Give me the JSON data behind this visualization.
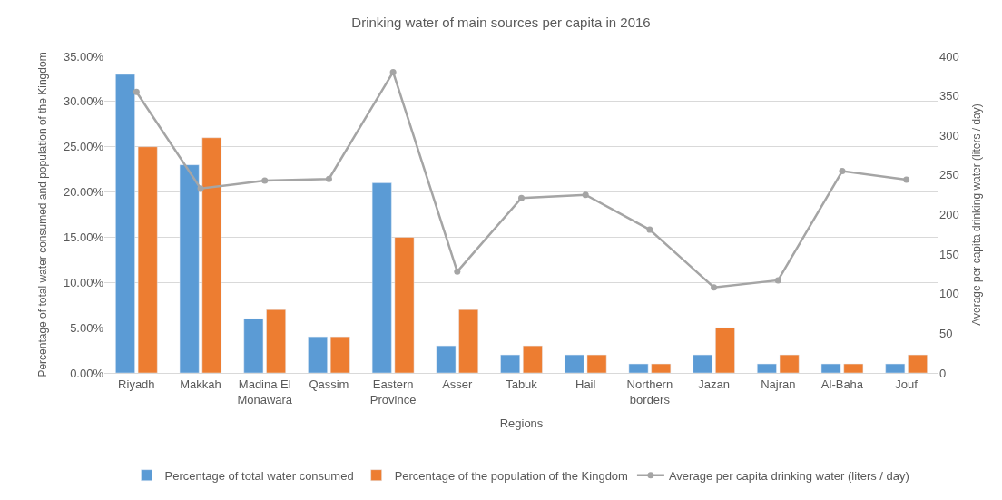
{
  "chart_data": {
    "type": "bar",
    "title": "Drinking water of main sources per capita in 2016",
    "xlabel": "Regions",
    "ylabel": "Percentage of total water consumed and population of the Kingdom",
    "y2label": "Average per capita drinking water (liters / day)",
    "categories": [
      "Riyadh",
      "Makkah",
      "Madina El Monawara",
      "Qassim",
      "Eastern Province",
      "Asser",
      "Tabuk",
      "Hail",
      "Northern borders",
      "Jazan",
      "Najran",
      "Al-Baha",
      "Jouf"
    ],
    "series": [
      {
        "name": "Percentage of total water consumed",
        "color": "#5b9bd5",
        "values": [
          33,
          23,
          6,
          4,
          21,
          3,
          2,
          2,
          1,
          2,
          1,
          1,
          1
        ]
      },
      {
        "name": "Percentage of the population of the Kingdom",
        "color": "#ed7d31",
        "values": [
          25,
          26,
          7,
          4,
          15,
          7,
          3,
          2,
          1,
          5,
          2,
          1,
          2
        ]
      },
      {
        "name": "Average per capita drinking water (liters / day)",
        "type": "line",
        "axis": "y2",
        "color": "#a5a5a5",
        "marker": "circle",
        "values": [
          355,
          233,
          243,
          245,
          380,
          128,
          221,
          225,
          181,
          108,
          117,
          255,
          244
        ]
      }
    ],
    "ylim": [
      0,
      35
    ],
    "yticks": [
      {
        "value": 0,
        "label": "0.00%"
      },
      {
        "value": 5,
        "label": "5.00%"
      },
      {
        "value": 10,
        "label": "10.00%"
      },
      {
        "value": 15,
        "label": "15.00%"
      },
      {
        "value": 20,
        "label": "20.00%"
      },
      {
        "value": 25,
        "label": "25.00%"
      },
      {
        "value": 30,
        "label": "30.00%"
      },
      {
        "value": 35,
        "label": "35.00%"
      }
    ],
    "y2lim": [
      0,
      400
    ],
    "y2ticks": [
      0,
      50,
      100,
      150,
      200,
      250,
      300,
      350,
      400
    ],
    "grid": "y",
    "legend": "bottom"
  }
}
